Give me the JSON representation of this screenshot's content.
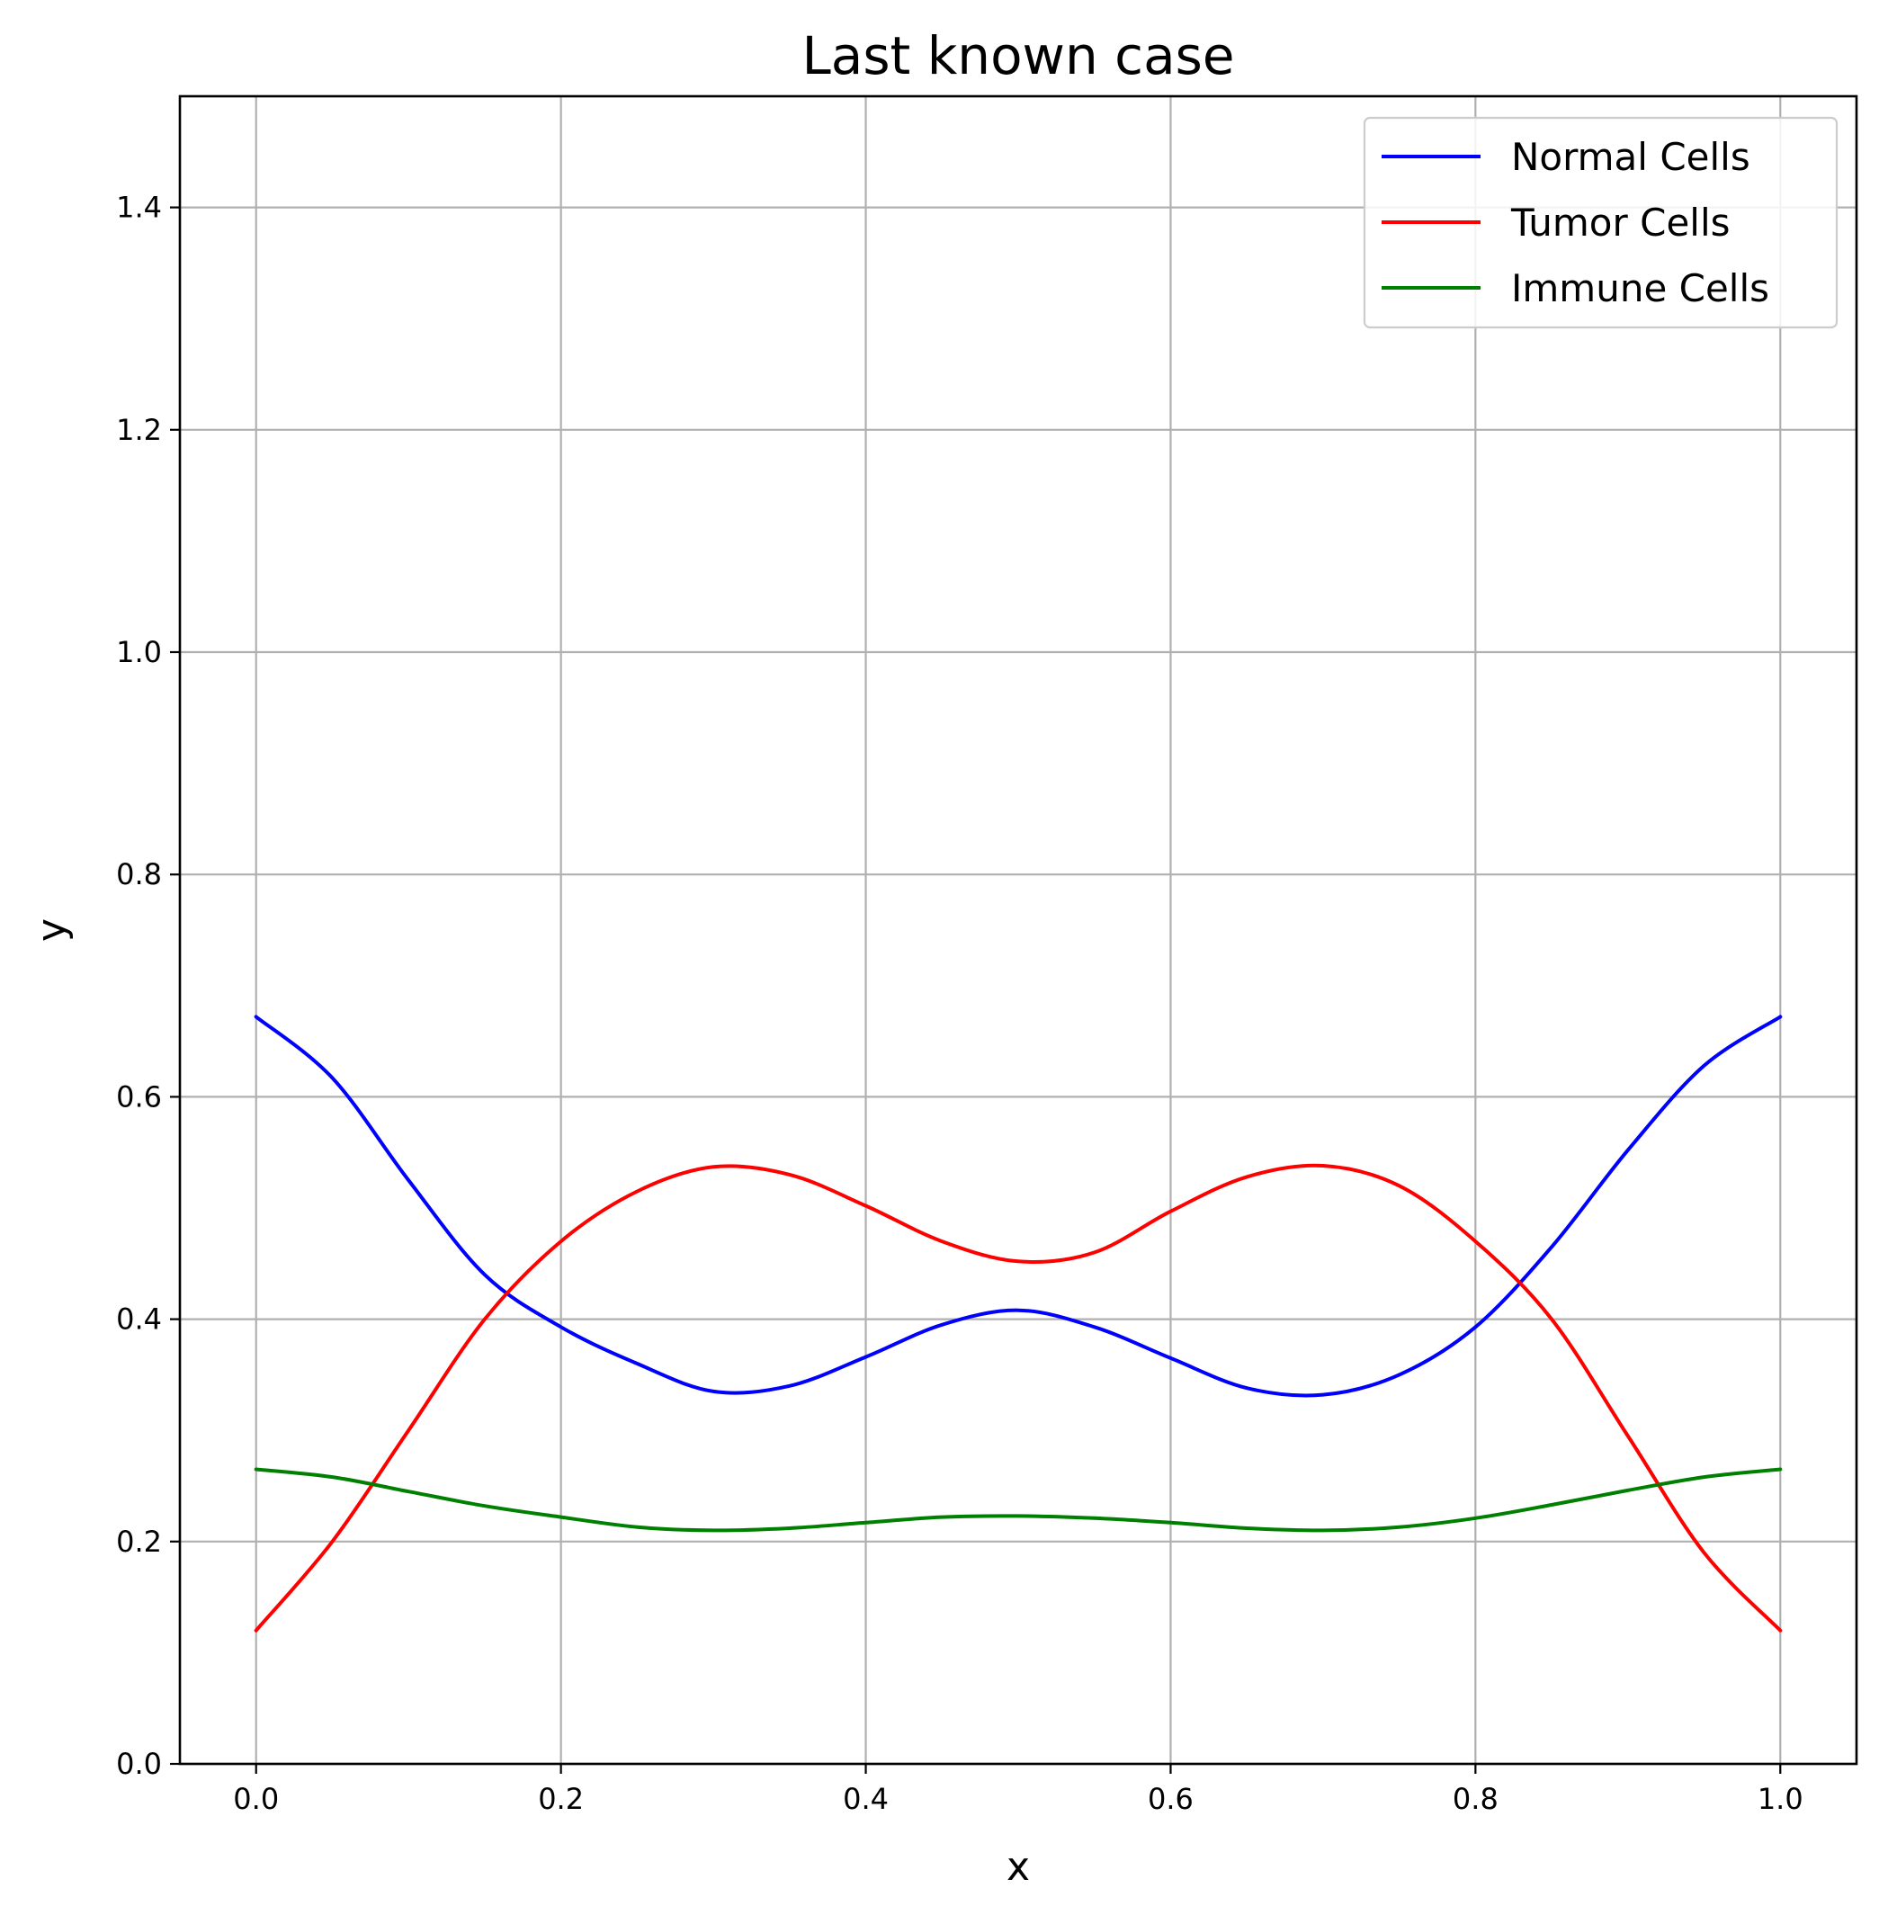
{
  "chart_data": {
    "type": "line",
    "title": "Last known case",
    "xlabel": "x",
    "ylabel": "y",
    "xlim": [
      -0.05,
      1.05
    ],
    "ylim": [
      0.0,
      1.5
    ],
    "xticks": [
      0.0,
      0.2,
      0.4,
      0.6,
      0.8,
      1.0
    ],
    "yticks": [
      0.0,
      0.2,
      0.4,
      0.6,
      0.8,
      1.0,
      1.2,
      1.4
    ],
    "xtick_labels": [
      "0.0",
      "0.2",
      "0.4",
      "0.6",
      "0.8",
      "1.0"
    ],
    "ytick_labels": [
      "0.0",
      "0.2",
      "0.4",
      "0.6",
      "0.8",
      "1.0",
      "1.2",
      "1.4"
    ],
    "grid": true,
    "legend_position": "top-right",
    "x": [
      0.0,
      0.05,
      0.1,
      0.15,
      0.2,
      0.25,
      0.3,
      0.35,
      0.4,
      0.45,
      0.5,
      0.55,
      0.6,
      0.65,
      0.7,
      0.75,
      0.8,
      0.85,
      0.9,
      0.95,
      1.0
    ],
    "series": [
      {
        "name": "Normal Cells",
        "color": "#0000ff",
        "values": [
          0.672,
          0.617,
          0.525,
          0.44,
          0.393,
          0.36,
          0.335,
          0.34,
          0.366,
          0.395,
          0.408,
          0.393,
          0.365,
          0.338,
          0.332,
          0.35,
          0.393,
          0.465,
          0.552,
          0.628,
          0.672
        ]
      },
      {
        "name": "Tumor Cells",
        "color": "#ff0000",
        "values": [
          0.12,
          0.2,
          0.3,
          0.4,
          0.47,
          0.515,
          0.537,
          0.53,
          0.502,
          0.47,
          0.452,
          0.46,
          0.497,
          0.528,
          0.538,
          0.52,
          0.47,
          0.4,
          0.295,
          0.19,
          0.12
        ]
      },
      {
        "name": "Immune Cells",
        "color": "#008000",
        "values": [
          0.265,
          0.258,
          0.245,
          0.232,
          0.222,
          0.213,
          0.21,
          0.212,
          0.217,
          0.222,
          0.223,
          0.221,
          0.217,
          0.212,
          0.21,
          0.213,
          0.221,
          0.233,
          0.246,
          0.258,
          0.265
        ]
      }
    ]
  }
}
